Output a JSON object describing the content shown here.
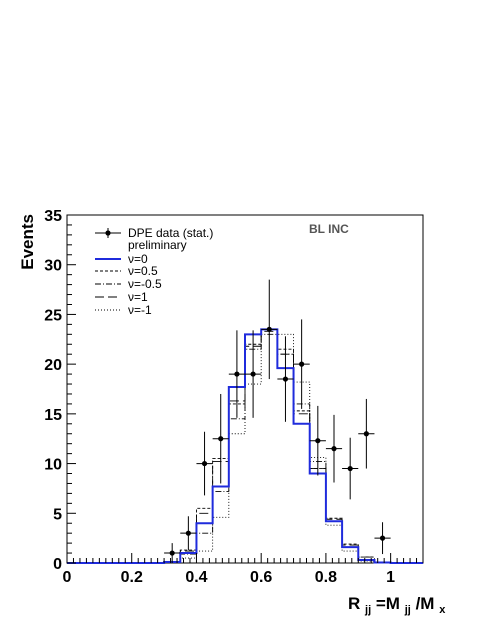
{
  "chart_data": {
    "type": "histogram",
    "title": "",
    "annotation": "BL INC",
    "ylabel": "Events",
    "xlabel": {
      "main": "R",
      "main_sub": "jj",
      "mid": "=M",
      "mid_sub": "jj",
      "slash": "/M",
      "end_sub": "x"
    },
    "xlim": [
      0,
      1.1
    ],
    "ylim": [
      0,
      35
    ],
    "x_ticks": [
      "0",
      "0.2",
      "0.4",
      "0.6",
      "0.8",
      "1"
    ],
    "y_ticks": [
      "0",
      "5",
      "10",
      "15",
      "20",
      "25",
      "30",
      "35"
    ],
    "bin_edges": [
      0.3,
      0.35,
      0.4,
      0.45,
      0.5,
      0.55,
      0.6,
      0.65,
      0.7,
      0.75,
      0.8,
      0.85,
      0.9,
      0.95,
      1.0
    ],
    "data_points": [
      {
        "x": 0.325,
        "y": 1.0,
        "ey": 1.0
      },
      {
        "x": 0.375,
        "y": 3.0,
        "ey": 1.7
      },
      {
        "x": 0.425,
        "y": 10.0,
        "ey": 3.2
      },
      {
        "x": 0.475,
        "y": 12.5,
        "ey": 4.5
      },
      {
        "x": 0.525,
        "y": 19.0,
        "ey": 4.4
      },
      {
        "x": 0.575,
        "y": 19.0,
        "ey": 4.4
      },
      {
        "x": 0.625,
        "y": 23.5,
        "ey": 5.0
      },
      {
        "x": 0.675,
        "y": 18.5,
        "ey": 4.3
      },
      {
        "x": 0.725,
        "y": 20.0,
        "ey": 4.5
      },
      {
        "x": 0.775,
        "y": 12.3,
        "ey": 3.5
      },
      {
        "x": 0.825,
        "y": 11.5,
        "ey": 3.4
      },
      {
        "x": 0.875,
        "y": 9.5,
        "ey": 3.1
      },
      {
        "x": 0.925,
        "y": 13.0,
        "ey": 3.5
      },
      {
        "x": 0.975,
        "y": 2.5,
        "ey": 1.6
      }
    ],
    "series": [
      {
        "name": "ν=0",
        "style": "solid-blue",
        "values": [
          0.1,
          1.0,
          4.0,
          7.7,
          17.7,
          23.0,
          23.5,
          19.6,
          14.0,
          9.0,
          4.2,
          1.6,
          0.3,
          0.05
        ]
      },
      {
        "name": "ν=0.5",
        "style": "short-dash",
        "values": [
          0.1,
          1.3,
          5.5,
          10.5,
          16.0,
          22.0,
          23.5,
          21.5,
          15.3,
          9.5,
          4.5,
          1.9,
          0.6,
          0.1
        ]
      },
      {
        "name": "ν=-0.5",
        "style": "dash-dot",
        "values": [
          0.1,
          0.9,
          3.0,
          7.2,
          14.5,
          21.5,
          23.0,
          21.0,
          16.0,
          10.2,
          4.2,
          1.6,
          0.3,
          0.05
        ]
      },
      {
        "name": "ν=1",
        "style": "long-dash",
        "values": [
          0.1,
          1.2,
          5.0,
          10.2,
          16.3,
          21.8,
          23.3,
          21.0,
          15.0,
          9.5,
          4.4,
          1.8,
          0.6,
          0.1
        ]
      },
      {
        "name": "ν=-1",
        "style": "dotted",
        "values": [
          0.1,
          0.5,
          1.2,
          4.6,
          13.0,
          18.0,
          23.5,
          23.0,
          18.2,
          10.6,
          3.8,
          1.2,
          0.2,
          0.05
        ]
      }
    ],
    "legend": {
      "position": "top-left",
      "entries": [
        "DPE data (stat.)",
        "preliminary",
        "ν=0",
        "ν=0.5",
        "ν=-0.5",
        "ν=1",
        "ν=-1"
      ]
    },
    "colors": {
      "data": "#000000",
      "nu0": "#1f2bdc",
      "mc": "#000000"
    }
  }
}
